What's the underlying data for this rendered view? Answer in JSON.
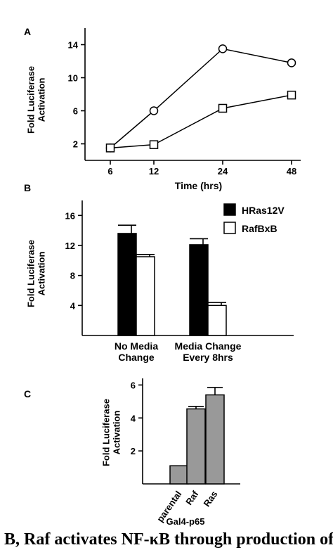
{
  "colors": {
    "hras": "#000000",
    "raf": "#ffffff",
    "gal4": "#999999",
    "axis": "#000000"
  },
  "caption": "B, Raf activates NF-κB through production of",
  "chart_data": [
    {
      "panel": "A",
      "type": "line",
      "x": [
        6,
        12,
        24,
        48
      ],
      "xticks": [
        "6",
        "12",
        "24",
        "48"
      ],
      "xlabel": "Time (hrs)",
      "ylabel": [
        "Fold Luciferase",
        "Activation"
      ],
      "yticks": [
        2,
        6,
        10,
        14
      ],
      "ylim": [
        0,
        16
      ],
      "series": [
        {
          "marker": "circle",
          "values": [
            1.5,
            6,
            13.5,
            11.8
          ]
        },
        {
          "marker": "square",
          "values": [
            1.5,
            1.9,
            6.3,
            7.9
          ]
        }
      ]
    },
    {
      "panel": "B",
      "type": "bar",
      "categories": [
        [
          "No Media",
          "Change"
        ],
        [
          "Media Change",
          "Every 8hrs"
        ]
      ],
      "ylabel": [
        "Fold Luciferase",
        "Activation"
      ],
      "yticks": [
        4,
        8,
        12,
        16
      ],
      "ylim": [
        0,
        18
      ],
      "legend_position": "top-right",
      "series": [
        {
          "name": "HRas12V",
          "color": "#000000",
          "values": [
            13.6,
            12.1
          ],
          "errors": [
            1.1,
            0.8
          ]
        },
        {
          "name": "RafBxB",
          "color": "#ffffff",
          "values": [
            10.5,
            4.0
          ],
          "errors": [
            0.3,
            0.4
          ]
        }
      ]
    },
    {
      "panel": "C",
      "type": "bar",
      "categories": [
        "parental",
        "Raf",
        "Ras"
      ],
      "xlabel": "Gal4-p65",
      "ylabel": [
        "Fold Luciferase",
        "Activation"
      ],
      "yticks": [
        2,
        4,
        6
      ],
      "ylim": [
        0,
        6.4
      ],
      "series": [
        {
          "color": "#999999",
          "values": [
            1.1,
            4.55,
            5.4
          ],
          "errors": [
            0,
            0.15,
            0.45
          ]
        }
      ]
    }
  ]
}
